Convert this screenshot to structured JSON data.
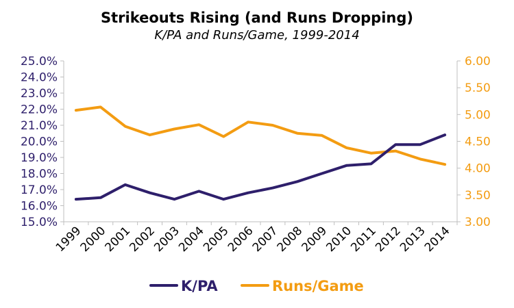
{
  "chart_data": {
    "type": "line",
    "title": "Strikeouts Rising (and Runs Dropping)",
    "subtitle": "K/PA and Runs/Game, 1999-2014",
    "categories": [
      "1999",
      "2000",
      "2001",
      "2002",
      "2003",
      "2004",
      "2005",
      "2006",
      "2007",
      "2008",
      "2009",
      "2010",
      "2011",
      "2012",
      "2013",
      "2014"
    ],
    "y_left": {
      "min": 15.0,
      "max": 25.0,
      "step": 1.0,
      "format": "percent1"
    },
    "y_right": {
      "min": 3.0,
      "max": 6.0,
      "step": 0.5,
      "format": "fixed2"
    },
    "series": [
      {
        "name": "K/PA",
        "axis": "left",
        "color": "#2e1f6b",
        "values": [
          16.4,
          16.5,
          17.3,
          16.8,
          16.4,
          16.9,
          16.4,
          16.8,
          17.1,
          17.5,
          18.0,
          18.5,
          18.6,
          19.8,
          19.8,
          20.4
        ]
      },
      {
        "name": "Runs/Game",
        "axis": "right",
        "color": "#f39c12",
        "values": [
          5.08,
          5.14,
          4.78,
          4.62,
          4.73,
          4.81,
          4.59,
          4.86,
          4.8,
          4.65,
          4.61,
          4.38,
          4.28,
          4.32,
          4.17,
          4.07
        ]
      }
    ],
    "legend": "bottom-center",
    "grid": false
  }
}
